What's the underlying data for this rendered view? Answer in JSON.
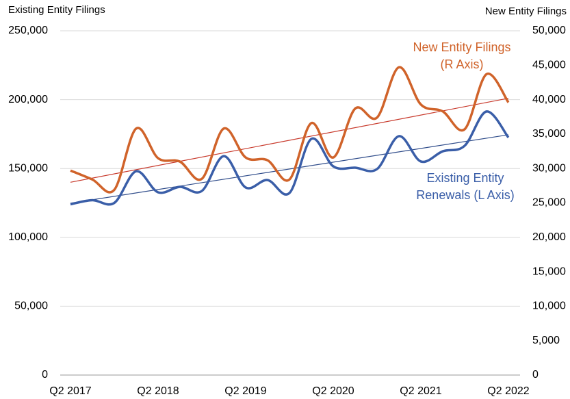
{
  "chart_data": {
    "type": "line",
    "y_title": "Existing Entity Filings",
    "y2_title": "New Entity Filings",
    "categories": [
      "Q2 2017",
      null,
      null,
      null,
      "Q2 2018",
      null,
      null,
      null,
      "Q2 2019",
      null,
      null,
      null,
      "Q2 2020",
      null,
      null,
      null,
      "Q2 2021",
      null,
      null,
      null,
      "Q2 2022"
    ],
    "series": [
      {
        "label": [
          "Existing Entity",
          "Renewals (L Axis)"
        ],
        "color": "#3a5ea8",
        "trend_color": "#2f4c8a",
        "axis": "y",
        "values": [
          124000,
          127000,
          125000,
          148000,
          132700,
          136700,
          133700,
          159000,
          136200,
          141600,
          132200,
          171500,
          151600,
          150600,
          149600,
          173500,
          155100,
          162500,
          166500,
          191400,
          172500
        ],
        "trend": [
          124800,
          174500
        ]
      },
      {
        "label": [
          "New Entity Filings",
          "(R Axis)"
        ],
        "color": "#d0632a",
        "trend_color": "#c8392b",
        "axis": "y2",
        "values": [
          29700,
          28400,
          26900,
          35800,
          31500,
          31000,
          28500,
          35800,
          31600,
          31200,
          28400,
          36600,
          31600,
          38700,
          37400,
          44700,
          39300,
          38300,
          35700,
          43700,
          39600
        ],
        "trend": [
          28000,
          40200
        ]
      }
    ],
    "ylim": [
      0,
      250000
    ],
    "yticks": [
      0,
      {
        "value": 50000,
        "label": "50,000"
      },
      {
        "value": 100000,
        "label": "100,000"
      },
      {
        "value": 150000,
        "label": "150,000"
      },
      {
        "value": 200000,
        "label": "200,000"
      },
      {
        "value": 250000,
        "label": "250,000"
      }
    ],
    "y2lim": [
      0,
      50000
    ],
    "y2ticks": [
      0,
      {
        "value": 5000,
        "label": "5,000"
      },
      {
        "value": 10000,
        "label": "10,000"
      },
      {
        "value": 15000,
        "label": "15,000"
      },
      {
        "value": 20000,
        "label": "20,000"
      },
      {
        "value": 25000,
        "label": "25,000"
      },
      {
        "value": 30000,
        "label": "30,000"
      },
      {
        "value": 35000,
        "label": "35,000"
      },
      {
        "value": 40000,
        "label": "40,000"
      },
      {
        "value": 45000,
        "label": "45,000"
      },
      {
        "value": 50000,
        "label": "50,000"
      }
    ],
    "grid": true
  }
}
